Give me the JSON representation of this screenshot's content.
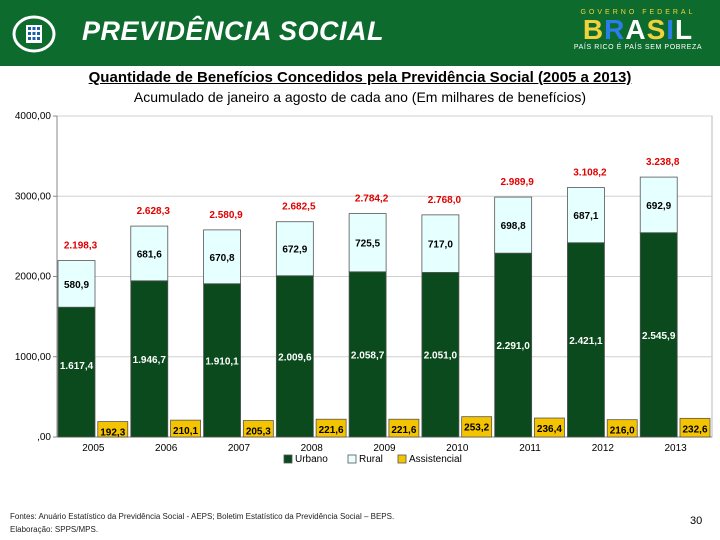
{
  "header": {
    "brand": "PREVIDÊNCIA SOCIAL",
    "gov_top": "GOVERNO FEDERAL",
    "gov_name": "BRASIL",
    "gov_motto": "PAÍS RICO É PAÍS SEM POBREZA",
    "colors": {
      "bar": "#0d6b2e",
      "gold": "#f2d23c"
    }
  },
  "page": {
    "title": "Quantidade de Benefícios Concedidos pela Previdência Social (2005 a 2013)",
    "subtitle": "Acumulado de janeiro a agosto de cada ano (Em milhares de benefícios)",
    "footer_line1": "Fontes: Anuário Estatístico da Previdência Social - AEPS; Boletim Estatístico da Previdência Social – BEPS.",
    "footer_line2": "Elaboração: SPPS/MPS.",
    "page_number": "30"
  },
  "chart_data": {
    "type": "bar",
    "categories": [
      "2005",
      "2006",
      "2007",
      "2008",
      "2009",
      "2010",
      "2011",
      "2012",
      "2013"
    ],
    "series": [
      {
        "name": "Urbano",
        "color": "#0a4a1c",
        "stack": "main",
        "values": [
          1617.4,
          1946.7,
          1910.1,
          2009.6,
          2058.7,
          2051.0,
          2291.0,
          2421.1,
          2545.9
        ],
        "labels": [
          "1.617,4",
          "1.946,7",
          "1.910,1",
          "2.009,6",
          "2.058,7",
          "2.051,0",
          "2.291,0",
          "2.421,1",
          "2.545,9"
        ]
      },
      {
        "name": "Rural",
        "color": "#e6ffff",
        "stack": "main",
        "values": [
          580.9,
          681.6,
          670.8,
          672.9,
          725.5,
          717.0,
          698.8,
          687.1,
          692.9
        ],
        "labels": [
          "580,9",
          "681,6",
          "670,8",
          "672,9",
          "725,5",
          "717,0",
          "698,8",
          "687,1",
          "692,9"
        ]
      },
      {
        "name": "Assistencial",
        "color": "#f5c400",
        "stack": "side",
        "values": [
          192.3,
          210.1,
          205.3,
          221.6,
          221.6,
          253.2,
          236.4,
          216.0,
          232.6
        ],
        "labels": [
          "192,3",
          "210,1",
          "205,3",
          "221,6",
          "221,6",
          "253,2",
          "236,4",
          "216,0",
          "232,6"
        ]
      }
    ],
    "totals": [
      2198.3,
      2628.3,
      2580.9,
      2682.5,
      2784.2,
      2768.0,
      2989.9,
      3108.2,
      3238.8
    ],
    "total_labels": [
      "2.198,3",
      "2.628,3",
      "2.580,9",
      "2.682,5",
      "2.784,2",
      "2.768,0",
      "2.989,9",
      "3.108,2",
      "3.238,8"
    ],
    "total_label_color": "#e00000",
    "ylim": [
      0,
      4000
    ],
    "yticks": [
      0,
      1000,
      2000,
      3000,
      4000
    ],
    "ytick_labels": [
      ",00",
      "1000,00",
      "2000,00",
      "3000,00",
      "4000,00"
    ],
    "legend": [
      "Urbano",
      "Rural",
      "Assistencial"
    ],
    "legend_position": "bottom"
  }
}
